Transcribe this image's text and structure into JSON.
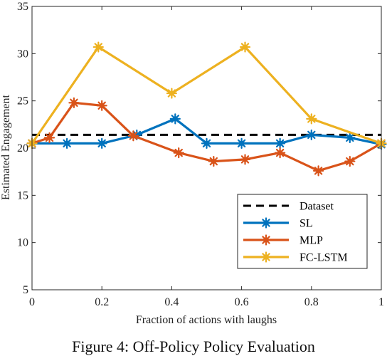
{
  "chart_data": {
    "type": "line",
    "xlabel": "Fraction of actions with laughs",
    "ylabel": "Estimated Engagement",
    "xlim": [
      0,
      1
    ],
    "ylim": [
      5,
      35
    ],
    "xticks": [
      0,
      0.2,
      0.4,
      0.6,
      0.8,
      1
    ],
    "yticks": [
      5,
      10,
      15,
      20,
      25,
      30,
      35
    ],
    "xtick_labels": [
      "0",
      "0.2",
      "0.4",
      "0.6",
      "0.8",
      "1"
    ],
    "ytick_labels": [
      "5",
      "10",
      "15",
      "20",
      "25",
      "30",
      "35"
    ],
    "grid": false,
    "legend_position": "bottom-right",
    "dataset": {
      "name": "Dataset",
      "y": 21.4,
      "color": "#000000",
      "style": "dashed"
    },
    "series": [
      {
        "name": "SL",
        "color": "#0072BD",
        "x": [
          0,
          0.1,
          0.2,
          0.3,
          0.41,
          0.5,
          0.6,
          0.71,
          0.8,
          0.91,
          1
        ],
        "y": [
          20.5,
          20.5,
          20.5,
          21.4,
          23.1,
          20.5,
          20.5,
          20.5,
          21.4,
          21.1,
          20.4
        ]
      },
      {
        "name": "MLP",
        "color": "#D95319",
        "x": [
          0,
          0.05,
          0.12,
          0.2,
          0.29,
          0.42,
          0.52,
          0.61,
          0.71,
          0.82,
          0.91,
          1
        ],
        "y": [
          20.5,
          21.1,
          24.8,
          24.5,
          21.3,
          19.5,
          18.6,
          18.8,
          19.5,
          17.6,
          18.6,
          20.5
        ]
      },
      {
        "name": "FC-LSTM",
        "color": "#EDB120",
        "x": [
          0,
          0.19,
          0.4,
          0.61,
          0.8,
          1
        ],
        "y": [
          20.5,
          30.7,
          25.8,
          30.7,
          23.1,
          20.5
        ]
      }
    ]
  },
  "caption": "Figure 4: Off-Policy Policy Evaluation"
}
